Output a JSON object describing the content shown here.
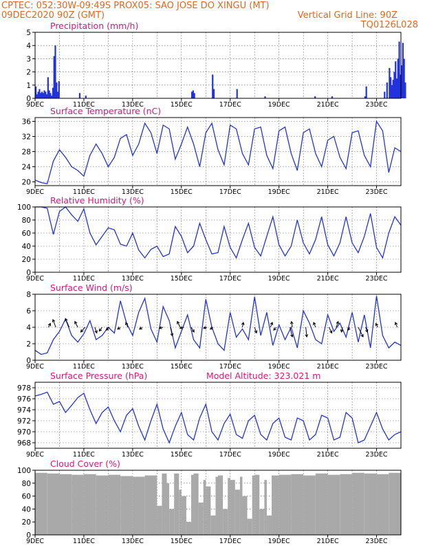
{
  "header": {
    "left1": "CPTEC:  052:30W-09:49S   PROX05: SAO JOSE DO XINGU (MT)",
    "left2": "09DEC2020 90Z (GMT)",
    "right2": "Vertical Grid Line: 90Z",
    "right3": "TQ0126L028"
  },
  "colors": {
    "header": "#e8661b",
    "title": "#e0147a",
    "series": "#2233dd",
    "cloud": "#a9a9a9"
  },
  "x_ticks": [
    "9DEC",
    "11DEC",
    "13DEC",
    "15DEC",
    "17DEC",
    "19DEC",
    "21DEC",
    "23DEC"
  ],
  "chart_data": [
    {
      "type": "bar",
      "title": "Precipitation (mm/h)",
      "ylim": [
        0,
        5
      ],
      "yticks": [
        "0",
        "1",
        "2",
        "3",
        "4",
        "5"
      ],
      "x_days": [
        0.0,
        0.05,
        0.1,
        0.15,
        0.2,
        0.25,
        0.3,
        0.35,
        0.4,
        0.45,
        0.5,
        0.55,
        0.6,
        0.65,
        0.7,
        0.75,
        0.8,
        0.85,
        0.9,
        0.95,
        1.8,
        2.05,
        6.4,
        6.45,
        6.5,
        7.25,
        7.3,
        8.25,
        9.4,
        11.45,
        12.15,
        13.5,
        13.55,
        14.3,
        14.4,
        14.5,
        14.55,
        14.6,
        14.65,
        14.7,
        14.75,
        14.8,
        14.85,
        14.9,
        14.95,
        15.0,
        15.05,
        15.1,
        15.15
      ],
      "values": [
        0.9,
        0.3,
        0.5,
        0.7,
        0.4,
        0.5,
        0.4,
        0.6,
        0.5,
        0.3,
        1.6,
        0.6,
        0.4,
        0.2,
        0.8,
        3.2,
        4.0,
        1.2,
        0.5,
        1.3,
        0.4,
        0.2,
        0.5,
        0.6,
        0.4,
        1.8,
        0.7,
        0.7,
        0.15,
        0.15,
        0.15,
        0.15,
        0.9,
        0.5,
        1.2,
        2.3,
        1.6,
        1.0,
        1.4,
        2.0,
        2.8,
        1.5,
        3.0,
        4.3,
        1.8,
        2.5,
        4.2,
        3.0,
        1.2
      ]
    },
    {
      "type": "line",
      "title": "Surface Temperature (nC)",
      "ylim": [
        19,
        37
      ],
      "yticks": [
        "20",
        "24",
        "28",
        "32",
        "36"
      ],
      "x_days": [
        0,
        0.25,
        0.5,
        0.75,
        1.0,
        1.25,
        1.5,
        1.75,
        2.0,
        2.25,
        2.5,
        2.75,
        3.0,
        3.25,
        3.5,
        3.75,
        4.0,
        4.25,
        4.5,
        4.75,
        5.0,
        5.25,
        5.5,
        5.75,
        6.0,
        6.25,
        6.5,
        6.75,
        7.0,
        7.25,
        7.5,
        7.75,
        8.0,
        8.25,
        8.5,
        8.75,
        9.0,
        9.25,
        9.5,
        9.75,
        10.0,
        10.25,
        10.5,
        10.75,
        11.0,
        11.25,
        11.5,
        11.75,
        12.0,
        12.25,
        12.5,
        12.75,
        13.0,
        13.25,
        13.5,
        13.75,
        14.0,
        14.25,
        14.5,
        14.75,
        15.0
      ],
      "values": [
        20.5,
        19.8,
        19.5,
        25.5,
        28.5,
        26.5,
        24.0,
        23.0,
        21.5,
        27.0,
        30.0,
        27.5,
        24.0,
        26.5,
        31.5,
        32.5,
        27.0,
        30.0,
        35.5,
        33.0,
        27.5,
        35.0,
        34.0,
        26.0,
        30.0,
        34.5,
        30.0,
        24.0,
        33.0,
        35.5,
        28.5,
        24.5,
        35.0,
        34.0,
        27.5,
        24.5,
        34.0,
        34.5,
        27.0,
        23.5,
        33.5,
        34.5,
        27.5,
        23.0,
        33.0,
        34.0,
        27.5,
        24.0,
        31.0,
        32.0,
        26.5,
        23.5,
        33.0,
        33.5,
        27.0,
        24.0,
        36.0,
        33.5,
        22.5,
        29.0,
        28.0
      ]
    },
    {
      "type": "line",
      "title": "Relative Humidity (%)",
      "ylim": [
        0,
        100
      ],
      "yticks": [
        "0",
        "20",
        "40",
        "60",
        "80",
        "100"
      ],
      "x_days": [
        0,
        0.25,
        0.5,
        0.75,
        1.0,
        1.25,
        1.5,
        1.75,
        2.0,
        2.25,
        2.5,
        2.75,
        3.0,
        3.25,
        3.5,
        3.75,
        4.0,
        4.25,
        4.5,
        4.75,
        5.0,
        5.25,
        5.5,
        5.75,
        6.0,
        6.25,
        6.5,
        6.75,
        7.0,
        7.25,
        7.5,
        7.75,
        8.0,
        8.25,
        8.5,
        8.75,
        9.0,
        9.25,
        9.5,
        9.75,
        10.0,
        10.25,
        10.5,
        10.75,
        11.0,
        11.25,
        11.5,
        11.75,
        12.0,
        12.25,
        12.5,
        12.75,
        13.0,
        13.25,
        13.5,
        13.75,
        14.0,
        14.25,
        14.5,
        14.75,
        15.0
      ],
      "values": [
        100,
        100,
        98,
        58,
        93,
        100,
        88,
        78,
        97,
        60,
        42,
        55,
        68,
        65,
        43,
        40,
        60,
        34,
        22,
        35,
        40,
        24,
        28,
        70,
        55,
        30,
        40,
        75,
        50,
        28,
        30,
        70,
        38,
        22,
        50,
        75,
        38,
        25,
        55,
        85,
        42,
        25,
        40,
        80,
        45,
        28,
        50,
        85,
        42,
        25,
        45,
        85,
        45,
        30,
        55,
        90,
        38,
        22,
        60,
        85,
        72
      ]
    },
    {
      "type": "line",
      "title": "Surface Wind (m/s)",
      "ylim": [
        0,
        8
      ],
      "yticks": [
        "0",
        "2",
        "4",
        "6",
        "8"
      ],
      "x_days": [
        0,
        0.25,
        0.5,
        0.75,
        1.0,
        1.25,
        1.5,
        1.75,
        2.0,
        2.25,
        2.5,
        2.75,
        3.0,
        3.25,
        3.5,
        3.75,
        4.0,
        4.25,
        4.5,
        4.75,
        5.0,
        5.25,
        5.5,
        5.75,
        6.0,
        6.25,
        6.5,
        6.75,
        7.0,
        7.25,
        7.5,
        7.75,
        8.0,
        8.25,
        8.5,
        8.75,
        9.0,
        9.25,
        9.5,
        9.75,
        10.0,
        10.25,
        10.5,
        10.75,
        11.0,
        11.25,
        11.5,
        11.75,
        12.0,
        12.25,
        12.5,
        12.75,
        13.0,
        13.25,
        13.5,
        13.75,
        14.0,
        14.25,
        14.5,
        14.75,
        15.0
      ],
      "values": [
        1.2,
        0.7,
        0.9,
        2.5,
        3.5,
        5.0,
        3.0,
        2.2,
        3.2,
        4.8,
        2.5,
        3.0,
        4.0,
        3.3,
        7.2,
        4.5,
        3.0,
        5.8,
        7.5,
        3.8,
        2.2,
        6.5,
        4.8,
        1.5,
        3.5,
        5.5,
        2.5,
        1.5,
        7.4,
        4.0,
        2.0,
        1.2,
        5.8,
        2.8,
        3.8,
        2.5,
        7.7,
        3.0,
        5.8,
        1.8,
        4.3,
        2.5,
        4.0,
        1.5,
        6.0,
        4.5,
        2.5,
        2.0,
        5.5,
        3.5,
        4.5,
        2.8,
        5.8,
        2.2,
        5.5,
        1.5,
        7.8,
        3.0,
        1.5,
        2.2,
        1.8
      ],
      "vectors": [
        {
          "x": 0.55,
          "dx": 0.2,
          "dy": -0.4
        },
        {
          "x": 0.85,
          "dx": -0.3,
          "dy": -0.8
        },
        {
          "x": 1.4,
          "dx": -0.4,
          "dy": -0.9
        },
        {
          "x": 1.75,
          "dx": -0.3,
          "dy": -0.6
        },
        {
          "x": 2.05,
          "dx": -0.45,
          "dy": 0.5
        },
        {
          "x": 2.45,
          "dx": 0.2,
          "dy": 0.6
        },
        {
          "x": 2.75,
          "dx": -0.3,
          "dy": 0.4
        },
        {
          "x": 3.05,
          "dx": -0.35,
          "dy": 0.3
        },
        {
          "x": 3.5,
          "dx": -0.3,
          "dy": 0.2
        },
        {
          "x": 3.8,
          "dx": -0.2,
          "dy": -0.5
        },
        {
          "x": 4.4,
          "dx": -0.3,
          "dy": 0.2
        },
        {
          "x": 5.25,
          "dx": -0.4,
          "dy": 0.1
        },
        {
          "x": 5.55,
          "dx": 0.2,
          "dy": 0.9
        },
        {
          "x": 5.95,
          "dx": -0.3,
          "dy": -0.6
        },
        {
          "x": 6.1,
          "dx": -0.4,
          "dy": 0.1
        },
        {
          "x": 6.4,
          "dx": 0.3,
          "dy": 0.5
        },
        {
          "x": 7.05,
          "dx": -0.35,
          "dy": 0.1
        },
        {
          "x": 7.3,
          "dx": -0.3,
          "dy": 0.2
        },
        {
          "x": 8.5,
          "dx": 0.1,
          "dy": -0.5
        },
        {
          "x": 9.0,
          "dx": 0.2,
          "dy": 0.6
        },
        {
          "x": 9.65,
          "dx": 0.2,
          "dy": -0.5
        },
        {
          "x": 9.9,
          "dx": -0.3,
          "dy": 0.3
        },
        {
          "x": 10.45,
          "dx": 0.25,
          "dy": 1.0
        },
        {
          "x": 10.55,
          "dx": -0.1,
          "dy": -0.6
        },
        {
          "x": 11.1,
          "dx": 0.1,
          "dy": 1.0
        },
        {
          "x": 11.5,
          "dx": -0.2,
          "dy": -0.5
        },
        {
          "x": 12.05,
          "dx": 0.3,
          "dy": 0.6
        },
        {
          "x": 12.35,
          "dx": 0.2,
          "dy": -0.6
        },
        {
          "x": 12.6,
          "dx": -0.1,
          "dy": 0.5
        },
        {
          "x": 12.9,
          "dx": -0.2,
          "dy": 0.3
        },
        {
          "x": 13.25,
          "dx": 0.5,
          "dy": 1.0
        },
        {
          "x": 13.55,
          "dx": 0.2,
          "dy": 0.5
        },
        {
          "x": 14.05,
          "dx": -0.2,
          "dy": -0.4
        },
        {
          "x": 14.85,
          "dx": -0.2,
          "dy": -0.5
        }
      ]
    },
    {
      "type": "line",
      "title": "Surface Pressure (hPa)",
      "subtitle": "Model Altitude: 323.021 m",
      "ylim": [
        967,
        979
      ],
      "yticks": [
        "968",
        "970",
        "972",
        "974",
        "976",
        "978"
      ],
      "x_days": [
        0,
        0.25,
        0.5,
        0.75,
        1.0,
        1.25,
        1.5,
        1.75,
        2.0,
        2.25,
        2.5,
        2.75,
        3.0,
        3.25,
        3.5,
        3.75,
        4.0,
        4.25,
        4.5,
        4.75,
        5.0,
        5.25,
        5.5,
        5.75,
        6.0,
        6.25,
        6.5,
        6.75,
        7.0,
        7.25,
        7.5,
        7.75,
        8.0,
        8.25,
        8.5,
        8.75,
        9.0,
        9.25,
        9.5,
        9.75,
        10.0,
        10.25,
        10.5,
        10.75,
        11.0,
        11.25,
        11.5,
        11.75,
        12.0,
        12.25,
        12.5,
        12.75,
        13.0,
        13.25,
        13.5,
        13.75,
        14.0,
        14.25,
        14.5,
        14.75,
        15.0
      ],
      "values": [
        976.5,
        976.8,
        977.2,
        975.0,
        975.5,
        973.5,
        974.8,
        976.2,
        977.0,
        974.0,
        971.5,
        973.5,
        974.5,
        972.0,
        970.0,
        973.0,
        974.2,
        971.0,
        968.5,
        972.0,
        975.0,
        970.5,
        968.0,
        971.0,
        973.5,
        969.5,
        968.5,
        972.5,
        975.0,
        970.0,
        968.5,
        971.5,
        973.2,
        969.5,
        968.8,
        972.0,
        973.0,
        969.5,
        968.5,
        971.5,
        972.5,
        969.0,
        968.5,
        972.5,
        972.0,
        968.5,
        969.5,
        973.0,
        972.5,
        968.5,
        969.0,
        973.5,
        972.5,
        968.0,
        968.5,
        971.0,
        973.5,
        970.5,
        968.5,
        969.5,
        970.0
      ]
    },
    {
      "type": "area",
      "title": "Cloud Cover (%)",
      "ylim": [
        0,
        100
      ],
      "yticks": [
        "0",
        "20",
        "40",
        "60",
        "80",
        "100"
      ],
      "x_days": [
        0,
        0.5,
        1.0,
        1.5,
        2.0,
        2.5,
        3.0,
        3.5,
        4.0,
        4.5,
        5.0,
        5.2,
        5.4,
        5.5,
        5.7,
        5.9,
        6.0,
        6.2,
        6.4,
        6.5,
        6.7,
        6.9,
        7.0,
        7.2,
        7.4,
        7.5,
        7.7,
        7.9,
        8.0,
        8.2,
        8.4,
        8.5,
        8.7,
        8.9,
        9.0,
        9.2,
        9.4,
        9.5,
        9.7,
        10.0,
        10.5,
        11.0,
        11.5,
        12.0,
        12.5,
        13.0,
        13.5,
        14.0,
        14.5,
        15.0
      ],
      "values": [
        96,
        95,
        94,
        93,
        94,
        92,
        93,
        91,
        90,
        92,
        45,
        95,
        80,
        40,
        95,
        70,
        60,
        20,
        93,
        95,
        50,
        85,
        75,
        30,
        90,
        92,
        40,
        88,
        85,
        70,
        90,
        60,
        25,
        92,
        93,
        40,
        85,
        30,
        92,
        93,
        94,
        92,
        95,
        93,
        94,
        96,
        95,
        94,
        96,
        95
      ]
    }
  ]
}
